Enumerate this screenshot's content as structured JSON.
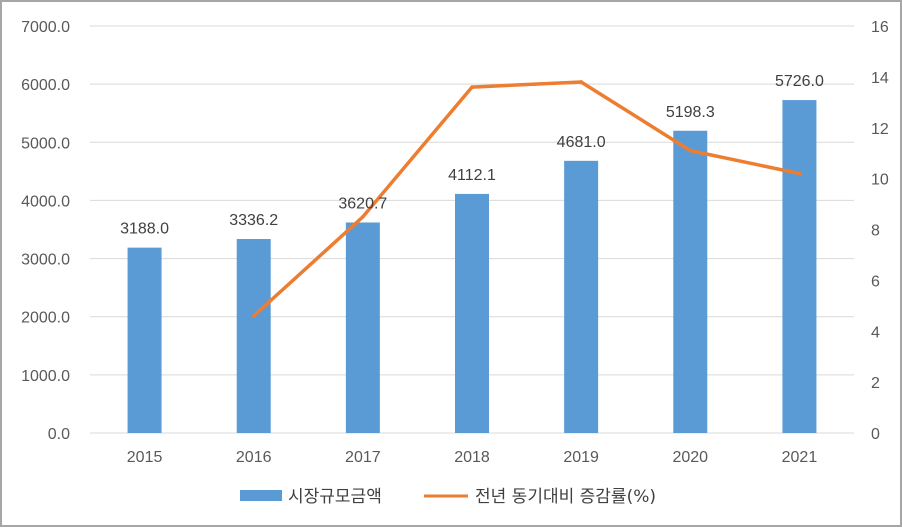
{
  "chart_data": {
    "type": "bar+line",
    "categories": [
      "2015",
      "2016",
      "2017",
      "2018",
      "2019",
      "2020",
      "2021"
    ],
    "series": [
      {
        "name": "시장규모금액",
        "type": "bar",
        "axis": "left",
        "color": "#5b9bd5",
        "values": [
          3188.0,
          3336.2,
          3620.7,
          4112.1,
          4681.0,
          5198.3,
          5726.0
        ],
        "labels": [
          "3188.0",
          "3336.2",
          "3620.7",
          "4112.1",
          "4681.0",
          "5198.3",
          "5726.0"
        ]
      },
      {
        "name": "전년 동기대비 증감률(%)",
        "type": "line",
        "axis": "right",
        "color": "#ed7d31",
        "values": [
          null,
          4.6,
          8.5,
          13.6,
          13.8,
          11.1,
          10.2
        ]
      }
    ],
    "y_left": {
      "ylim": [
        0,
        7000
      ],
      "ticks": [
        "0.0",
        "1000.0",
        "2000.0",
        "3000.0",
        "4000.0",
        "5000.0",
        "6000.0",
        "7000.0"
      ]
    },
    "y_right": {
      "ylim": [
        0,
        16
      ],
      "ticks": [
        "0",
        "2",
        "4",
        "6",
        "8",
        "10",
        "12",
        "14",
        "16"
      ]
    },
    "grid": true,
    "legend": "bottom"
  }
}
